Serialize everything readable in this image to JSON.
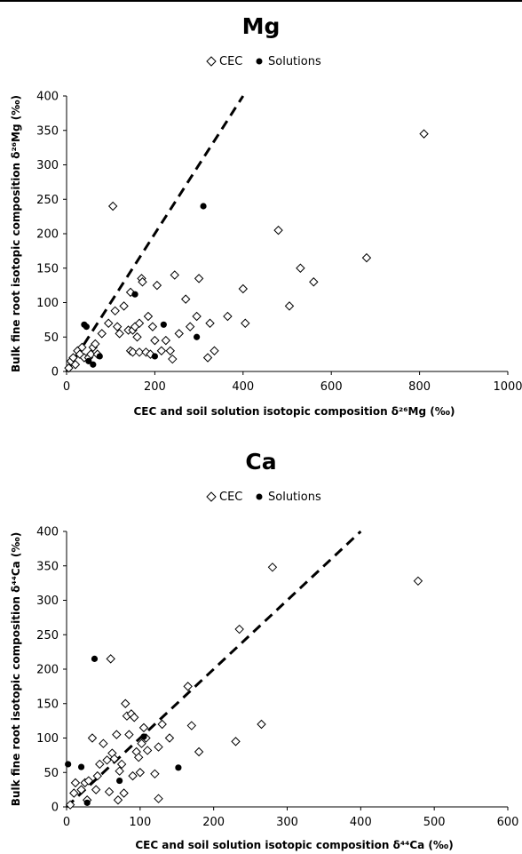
{
  "chart_data": [
    {
      "type": "scatter",
      "title": "Mg",
      "xlabel": "CEC and soil solution isotopic composition  δ²⁶Mg (‰)",
      "ylabel": "Bulk fine root isotopic composition  δ²⁶Mg  (‰)",
      "xlim": [
        0,
        1000
      ],
      "ylim": [
        0,
        400
      ],
      "xticks": [
        0,
        200,
        400,
        600,
        800,
        1000
      ],
      "yticks": [
        0,
        50,
        100,
        150,
        200,
        250,
        300,
        350,
        400
      ],
      "legend_position": "top",
      "grid": false,
      "reference_line": {
        "style": "dashed",
        "from": [
          0,
          0
        ],
        "to": [
          400,
          400
        ]
      },
      "series": [
        {
          "name": "CEC",
          "marker": "open-diamond",
          "points": [
            [
              5,
              5
            ],
            [
              10,
              15
            ],
            [
              15,
              20
            ],
            [
              20,
              10
            ],
            [
              25,
              30
            ],
            [
              30,
              25
            ],
            [
              35,
              35
            ],
            [
              40,
              20
            ],
            [
              50,
              20
            ],
            [
              55,
              25
            ],
            [
              60,
              35
            ],
            [
              65,
              40
            ],
            [
              70,
              25
            ],
            [
              80,
              55
            ],
            [
              95,
              70
            ],
            [
              105,
              240
            ],
            [
              110,
              88
            ],
            [
              115,
              65
            ],
            [
              120,
              55
            ],
            [
              130,
              95
            ],
            [
              140,
              60
            ],
            [
              145,
              115
            ],
            [
              150,
              60
            ],
            [
              155,
              65
            ],
            [
              160,
              50
            ],
            [
              165,
              70
            ],
            [
              145,
              30
            ],
            [
              150,
              28
            ],
            [
              165,
              28
            ],
            [
              170,
              135
            ],
            [
              172,
              130
            ],
            [
              180,
              28
            ],
            [
              185,
              80
            ],
            [
              190,
              25
            ],
            [
              195,
              65
            ],
            [
              200,
              45
            ],
            [
              205,
              125
            ],
            [
              215,
              30
            ],
            [
              225,
              45
            ],
            [
              235,
              30
            ],
            [
              240,
              18
            ],
            [
              245,
              140
            ],
            [
              255,
              55
            ],
            [
              270,
              105
            ],
            [
              280,
              65
            ],
            [
              295,
              80
            ],
            [
              300,
              135
            ],
            [
              320,
              20
            ],
            [
              325,
              70
            ],
            [
              335,
              30
            ],
            [
              365,
              80
            ],
            [
              400,
              120
            ],
            [
              405,
              70
            ],
            [
              480,
              205
            ],
            [
              505,
              95
            ],
            [
              530,
              150
            ],
            [
              560,
              130
            ],
            [
              680,
              165
            ],
            [
              810,
              345
            ]
          ]
        },
        {
          "name": "Solutions",
          "marker": "filled-circle",
          "points": [
            [
              40,
              68
            ],
            [
              45,
              65
            ],
            [
              50,
              15
            ],
            [
              60,
              10
            ],
            [
              75,
              22
            ],
            [
              155,
              112
            ],
            [
              200,
              22
            ],
            [
              220,
              68
            ],
            [
              295,
              50
            ],
            [
              310,
              240
            ]
          ]
        }
      ]
    },
    {
      "type": "scatter",
      "title": "Ca",
      "xlabel": "CEC and soil solution isotopic composition  δ⁴⁴Ca (‰)",
      "ylabel": "Bulk fine root isotopic composition  δ⁴⁴Ca  (‰)",
      "xlim": [
        0,
        600
      ],
      "ylim": [
        0,
        400
      ],
      "xticks": [
        0,
        100,
        200,
        300,
        400,
        500,
        600
      ],
      "yticks": [
        0,
        50,
        100,
        150,
        200,
        250,
        300,
        350,
        400
      ],
      "legend_position": "top",
      "grid": false,
      "reference_line": {
        "style": "dashed",
        "from": [
          0,
          0
        ],
        "to": [
          400,
          400
        ]
      },
      "series": [
        {
          "name": "CEC",
          "marker": "open-diamond",
          "points": [
            [
              5,
              3
            ],
            [
              10,
              20
            ],
            [
              12,
              35
            ],
            [
              20,
              25
            ],
            [
              25,
              35
            ],
            [
              28,
              10
            ],
            [
              30,
              38
            ],
            [
              35,
              100
            ],
            [
              40,
              25
            ],
            [
              42,
              45
            ],
            [
              45,
              62
            ],
            [
              50,
              92
            ],
            [
              55,
              68
            ],
            [
              58,
              22
            ],
            [
              60,
              215
            ],
            [
              62,
              78
            ],
            [
              65,
              70
            ],
            [
              68,
              105
            ],
            [
              70,
              10
            ],
            [
              72,
              52
            ],
            [
              75,
              62
            ],
            [
              78,
              20
            ],
            [
              80,
              150
            ],
            [
              82,
              132
            ],
            [
              85,
              105
            ],
            [
              88,
              135
            ],
            [
              90,
              45
            ],
            [
              92,
              130
            ],
            [
              95,
              80
            ],
            [
              98,
              72
            ],
            [
              100,
              50
            ],
            [
              102,
              92
            ],
            [
              105,
              115
            ],
            [
              108,
              100
            ],
            [
              110,
              82
            ],
            [
              120,
              48
            ],
            [
              125,
              12
            ],
            [
              125,
              87
            ],
            [
              130,
              120
            ],
            [
              140,
              100
            ],
            [
              165,
              175
            ],
            [
              170,
              118
            ],
            [
              180,
              80
            ],
            [
              230,
              95
            ],
            [
              235,
              258
            ],
            [
              265,
              120
            ],
            [
              280,
              348
            ],
            [
              478,
              328
            ]
          ]
        },
        {
          "name": "Solutions",
          "marker": "filled-circle",
          "points": [
            [
              2,
              62
            ],
            [
              20,
              58
            ],
            [
              28,
              6
            ],
            [
              38,
              215
            ],
            [
              72,
              38
            ],
            [
              105,
              102
            ],
            [
              152,
              57
            ]
          ]
        }
      ]
    }
  ]
}
